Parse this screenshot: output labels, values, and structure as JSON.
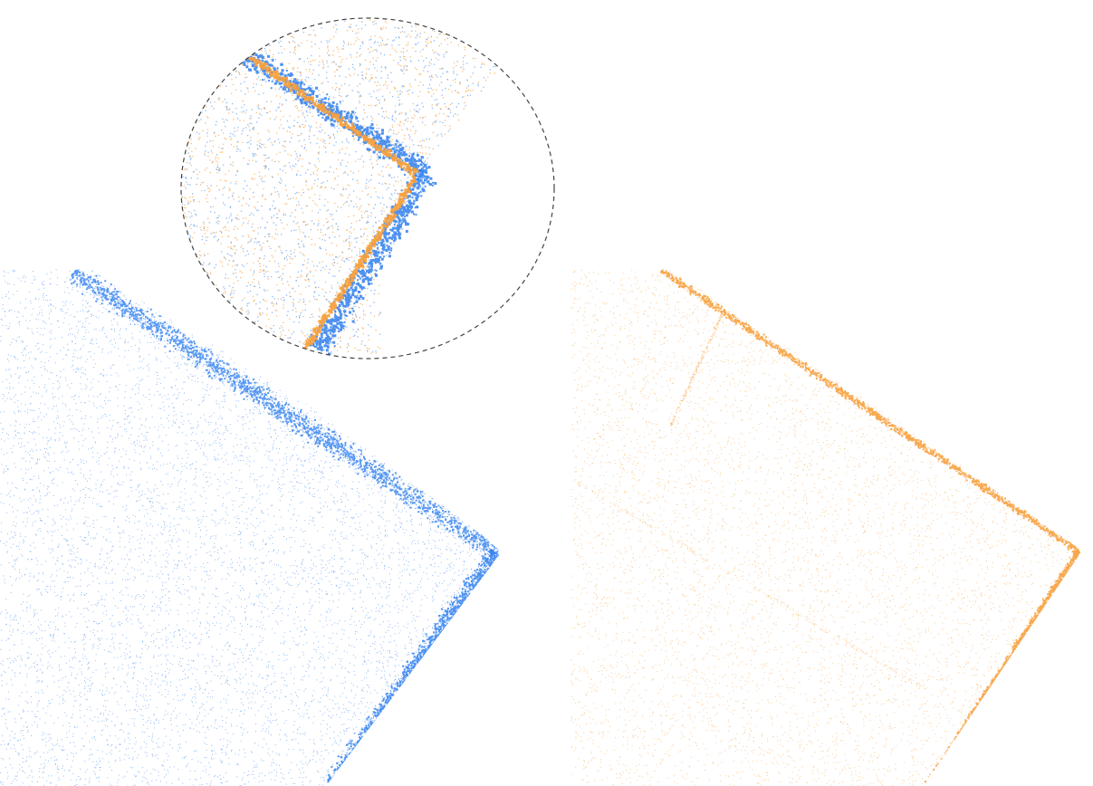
{
  "figure": {
    "background": "#ffffff",
    "colors": {
      "blue_cloud": "#2f7fef",
      "orange_cloud": "#f7a03c",
      "zoom_outline": "#444444"
    },
    "panels": [
      {
        "name": "left-point-cloud",
        "color_key": "blue_cloud"
      },
      {
        "name": "right-point-cloud",
        "color_key": "orange_cloud"
      },
      {
        "name": "zoom-inset-overlay",
        "color_key": "zoom_outline"
      }
    ]
  }
}
